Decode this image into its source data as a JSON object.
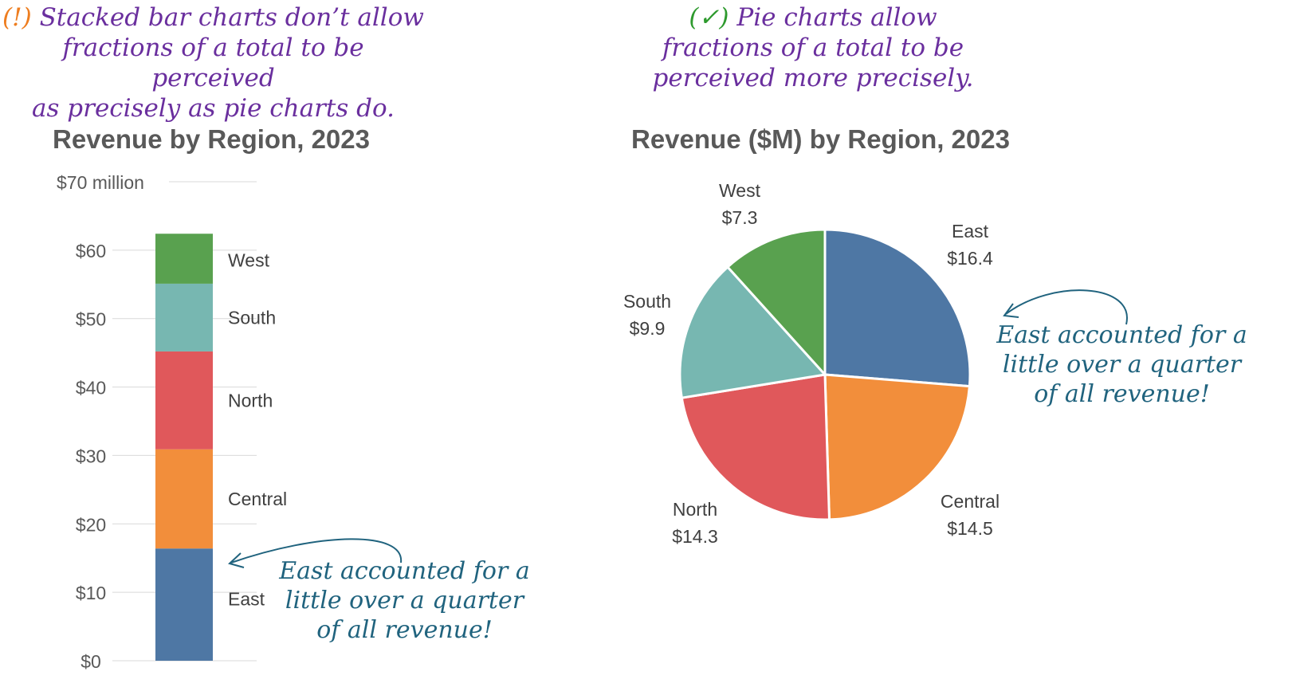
{
  "left": {
    "caption": {
      "marker": "(!)",
      "line1": "Stacked bar charts don’t allow",
      "line2": "fractions of a total to be perceived",
      "line3": "as precisely as pie charts do."
    },
    "annotation": {
      "line1": "East accounted for a",
      "line2": "little over a quarter",
      "line3": "of all revenue!"
    }
  },
  "right": {
    "caption": {
      "marker": "(✓)",
      "line1": "Pie charts allow",
      "line2": "fractions of a total to be",
      "line3": "perceived more precisely."
    },
    "annotation": {
      "line1": "East accounted for a",
      "line2": "little over a quarter",
      "line3": "of all revenue!"
    }
  },
  "colors": {
    "east": "#4e77a4",
    "central": "#f28e3b",
    "north": "#e0585b",
    "south": "#77b7b1",
    "west": "#59a14f",
    "caption": "#6a2f9e",
    "annotation": "#20637e"
  },
  "chart_data": [
    {
      "type": "bar",
      "stacked": true,
      "title": "Revenue by Region, 2023",
      "ylim": [
        0,
        70
      ],
      "yticks": [
        0,
        10,
        20,
        30,
        40,
        50,
        60,
        70
      ],
      "ytick_labels": [
        "$0",
        "$10",
        "$20",
        "$30",
        "$40",
        "$50",
        "$60",
        "$70"
      ],
      "ytop_suffix": "million",
      "grid": true,
      "series": [
        {
          "name": "East",
          "value": 16.4,
          "color": "#4e77a4"
        },
        {
          "name": "Central",
          "value": 14.5,
          "color": "#f28e3b"
        },
        {
          "name": "North",
          "value": 14.3,
          "color": "#e0585b"
        },
        {
          "name": "South",
          "value": 9.9,
          "color": "#77b7b1"
        },
        {
          "name": "West",
          "value": 7.3,
          "color": "#59a14f"
        }
      ]
    },
    {
      "type": "pie",
      "title": "Revenue ($M) by Region, 2023",
      "start": "12 o'clock",
      "direction": "clockwise",
      "slices": [
        {
          "name": "East",
          "value": 16.4,
          "label": "$16.4",
          "color": "#4e77a4"
        },
        {
          "name": "Central",
          "value": 14.5,
          "label": "$14.5",
          "color": "#f28e3b"
        },
        {
          "name": "North",
          "value": 14.3,
          "label": "$14.3",
          "color": "#e0585b"
        },
        {
          "name": "South",
          "value": 9.9,
          "label": "$9.9",
          "color": "#77b7b1"
        },
        {
          "name": "West",
          "value": 7.3,
          "label": "$7.3",
          "color": "#59a14f"
        }
      ]
    }
  ]
}
